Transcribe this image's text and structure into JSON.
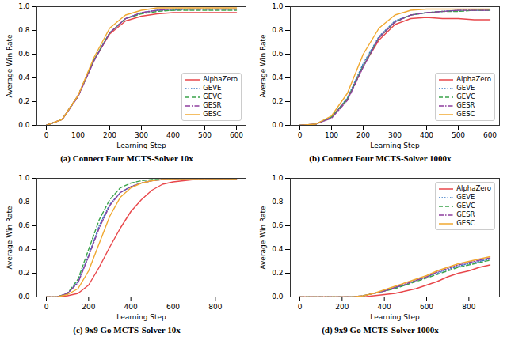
{
  "chart_data": [
    {
      "type": "line",
      "title": "(a) Connect Four MCTS-Solver 10x",
      "x_label": "Learning Step",
      "y_label": "Average Win Rate",
      "xlim": [
        -30,
        630
      ],
      "xticks": [
        0,
        100,
        200,
        300,
        400,
        500,
        600
      ],
      "ylim": [
        0,
        1
      ],
      "yticks": [
        {
          "value": 0,
          "label": "0.0"
        },
        0.2,
        0.4,
        0.6,
        0.8,
        {
          "value": 1,
          "label": "1.0"
        }
      ],
      "grid": false,
      "legend": "lower right",
      "x": [
        0,
        50,
        100,
        150,
        200,
        250,
        300,
        350,
        400,
        450,
        500,
        550,
        600
      ],
      "series": [
        {
          "name": "AlphaZero",
          "color": "#e8474b",
          "line_style": "solid",
          "values": [
            0.0,
            0.05,
            0.25,
            0.55,
            0.77,
            0.88,
            0.92,
            0.94,
            0.95,
            0.95,
            0.95,
            0.95,
            0.95
          ]
        },
        {
          "name": "GEVE",
          "color": "#3a78c4",
          "line_style": "dotted",
          "values": [
            0.0,
            0.05,
            0.25,
            0.55,
            0.78,
            0.9,
            0.95,
            0.97,
            0.97,
            0.98,
            0.98,
            0.98,
            0.98
          ]
        },
        {
          "name": "GEVC",
          "color": "#3aa34a",
          "line_style": "dashed",
          "values": [
            0.0,
            0.05,
            0.25,
            0.55,
            0.78,
            0.9,
            0.94,
            0.96,
            0.97,
            0.97,
            0.97,
            0.97,
            0.97
          ]
        },
        {
          "name": "GESR",
          "color": "#8e3e9e",
          "line_style": "dashdot",
          "values": [
            0.0,
            0.05,
            0.24,
            0.54,
            0.78,
            0.9,
            0.95,
            0.97,
            0.98,
            0.98,
            0.98,
            0.98,
            0.98
          ]
        },
        {
          "name": "GESC",
          "color": "#f0a830",
          "line_style": "solid",
          "values": [
            0.0,
            0.05,
            0.25,
            0.57,
            0.82,
            0.93,
            0.97,
            0.99,
            0.99,
            0.99,
            0.99,
            0.99,
            0.99
          ]
        }
      ]
    },
    {
      "type": "line",
      "title": "(b) Connect Four MCTS-Solver 1000x",
      "x_label": "Learning Step",
      "y_label": "Average Win Rate",
      "xlim": [
        -30,
        630
      ],
      "xticks": [
        0,
        100,
        200,
        300,
        400,
        500,
        600
      ],
      "ylim": [
        0,
        1
      ],
      "yticks": [
        {
          "value": 0,
          "label": "0.0"
        },
        0.2,
        0.4,
        0.6,
        0.8,
        {
          "value": 1,
          "label": "1.0"
        }
      ],
      "grid": false,
      "legend": "lower right",
      "x": [
        0,
        50,
        100,
        150,
        200,
        250,
        300,
        350,
        400,
        450,
        500,
        550,
        600
      ],
      "series": [
        {
          "name": "AlphaZero",
          "color": "#e8474b",
          "line_style": "solid",
          "values": [
            0.0,
            0.01,
            0.07,
            0.22,
            0.5,
            0.72,
            0.85,
            0.9,
            0.91,
            0.9,
            0.9,
            0.89,
            0.89
          ]
        },
        {
          "name": "GEVE",
          "color": "#3a78c4",
          "line_style": "dotted",
          "values": [
            0.0,
            0.01,
            0.07,
            0.23,
            0.52,
            0.75,
            0.88,
            0.93,
            0.95,
            0.96,
            0.97,
            0.97,
            0.97
          ]
        },
        {
          "name": "GEVC",
          "color": "#3aa34a",
          "line_style": "dashed",
          "values": [
            0.0,
            0.01,
            0.07,
            0.22,
            0.5,
            0.74,
            0.87,
            0.93,
            0.95,
            0.96,
            0.96,
            0.97,
            0.97
          ]
        },
        {
          "name": "GESR",
          "color": "#8e3e9e",
          "line_style": "dashdot",
          "values": [
            0.0,
            0.01,
            0.06,
            0.21,
            0.49,
            0.74,
            0.87,
            0.93,
            0.95,
            0.96,
            0.97,
            0.97,
            0.97
          ]
        },
        {
          "name": "GESC",
          "color": "#f0a830",
          "line_style": "solid",
          "values": [
            0.0,
            0.01,
            0.08,
            0.27,
            0.6,
            0.82,
            0.93,
            0.97,
            0.98,
            0.98,
            0.98,
            0.98,
            0.98
          ]
        }
      ]
    },
    {
      "type": "line",
      "title": "(c) 9x9 Go MCTS-Solver 10x",
      "x_label": "Learning Step",
      "y_label": "Average Win Rate",
      "xlim": [
        -45,
        945
      ],
      "xticks": [
        0,
        200,
        400,
        600,
        800
      ],
      "ylim": [
        0,
        1
      ],
      "yticks": [
        {
          "value": 0,
          "label": "0.0"
        },
        0.2,
        0.4,
        0.6,
        0.8,
        {
          "value": 1,
          "label": "1.0"
        }
      ],
      "grid": false,
      "legend": "none",
      "x": [
        0,
        50,
        100,
        150,
        200,
        250,
        300,
        350,
        400,
        450,
        500,
        550,
        600,
        650,
        700,
        750,
        800,
        850,
        900
      ],
      "series": [
        {
          "name": "AlphaZero",
          "color": "#e8474b",
          "line_style": "solid",
          "values": [
            0.0,
            0.0,
            0.01,
            0.03,
            0.1,
            0.25,
            0.42,
            0.58,
            0.72,
            0.82,
            0.9,
            0.95,
            0.97,
            0.98,
            0.99,
            0.99,
            0.99,
            0.99,
            0.99
          ]
        },
        {
          "name": "GEVE",
          "color": "#3a78c4",
          "line_style": "dotted",
          "values": [
            0.0,
            0.0,
            0.03,
            0.13,
            0.35,
            0.6,
            0.78,
            0.88,
            0.93,
            0.96,
            0.98,
            0.99,
            0.99,
            0.99,
            0.99,
            0.99,
            0.99,
            0.99,
            0.99
          ]
        },
        {
          "name": "GEVC",
          "color": "#3aa34a",
          "line_style": "dashed",
          "values": [
            0.0,
            0.0,
            0.03,
            0.15,
            0.4,
            0.65,
            0.82,
            0.92,
            0.96,
            0.98,
            0.99,
            0.99,
            0.99,
            0.99,
            0.99,
            0.99,
            0.99,
            0.99,
            0.99
          ]
        },
        {
          "name": "GESR",
          "color": "#8e3e9e",
          "line_style": "dashdot",
          "values": [
            0.0,
            0.0,
            0.03,
            0.12,
            0.34,
            0.58,
            0.77,
            0.88,
            0.93,
            0.96,
            0.98,
            0.99,
            0.99,
            0.99,
            0.99,
            0.99,
            0.99,
            0.99,
            0.99
          ]
        },
        {
          "name": "GESC",
          "color": "#f0a830",
          "line_style": "solid",
          "values": [
            0.0,
            0.0,
            0.02,
            0.07,
            0.22,
            0.45,
            0.68,
            0.84,
            0.92,
            0.96,
            0.98,
            0.99,
            0.99,
            0.99,
            0.99,
            0.99,
            0.99,
            0.99,
            0.99
          ]
        }
      ]
    },
    {
      "type": "line",
      "title": "(d) 9x9 Go MCTS-Solver 1000x",
      "x_label": "Learning Step",
      "y_label": "Average Win Rate",
      "xlim": [
        -45,
        945
      ],
      "xticks": [
        0,
        200,
        400,
        600,
        800
      ],
      "ylim": [
        0,
        1
      ],
      "yticks": [
        {
          "value": 0,
          "label": "0.0"
        },
        0.2,
        0.4,
        0.6,
        0.8,
        {
          "value": 1,
          "label": "1.0"
        }
      ],
      "grid": false,
      "legend": "upper right",
      "x": [
        0,
        50,
        100,
        150,
        200,
        250,
        300,
        350,
        400,
        450,
        500,
        550,
        600,
        650,
        700,
        750,
        800,
        850,
        900
      ],
      "series": [
        {
          "name": "AlphaZero",
          "color": "#e8474b",
          "line_style": "solid",
          "values": [
            0.0,
            0.0,
            0.0,
            0.0,
            0.0,
            0.0,
            0.0,
            0.01,
            0.02,
            0.03,
            0.05,
            0.07,
            0.1,
            0.13,
            0.17,
            0.2,
            0.22,
            0.25,
            0.27
          ]
        },
        {
          "name": "GEVE",
          "color": "#3a78c4",
          "line_style": "dotted",
          "values": [
            0.0,
            0.0,
            0.0,
            0.0,
            0.0,
            0.0,
            0.01,
            0.03,
            0.05,
            0.08,
            0.1,
            0.14,
            0.17,
            0.2,
            0.23,
            0.26,
            0.28,
            0.3,
            0.32
          ]
        },
        {
          "name": "GEVC",
          "color": "#3aa34a",
          "line_style": "dashed",
          "values": [
            0.0,
            0.0,
            0.0,
            0.0,
            0.0,
            0.0,
            0.01,
            0.03,
            0.05,
            0.07,
            0.1,
            0.13,
            0.16,
            0.19,
            0.22,
            0.25,
            0.27,
            0.29,
            0.31
          ]
        },
        {
          "name": "GESR",
          "color": "#8e3e9e",
          "line_style": "dashdot",
          "values": [
            0.0,
            0.0,
            0.0,
            0.0,
            0.0,
            0.0,
            0.01,
            0.03,
            0.05,
            0.08,
            0.11,
            0.14,
            0.17,
            0.21,
            0.24,
            0.27,
            0.29,
            0.31,
            0.33
          ]
        },
        {
          "name": "GESC",
          "color": "#f0a830",
          "line_style": "solid",
          "values": [
            0.0,
            0.0,
            0.0,
            0.0,
            0.0,
            0.0,
            0.01,
            0.03,
            0.06,
            0.09,
            0.12,
            0.15,
            0.18,
            0.22,
            0.25,
            0.28,
            0.3,
            0.32,
            0.34
          ]
        }
      ]
    }
  ]
}
